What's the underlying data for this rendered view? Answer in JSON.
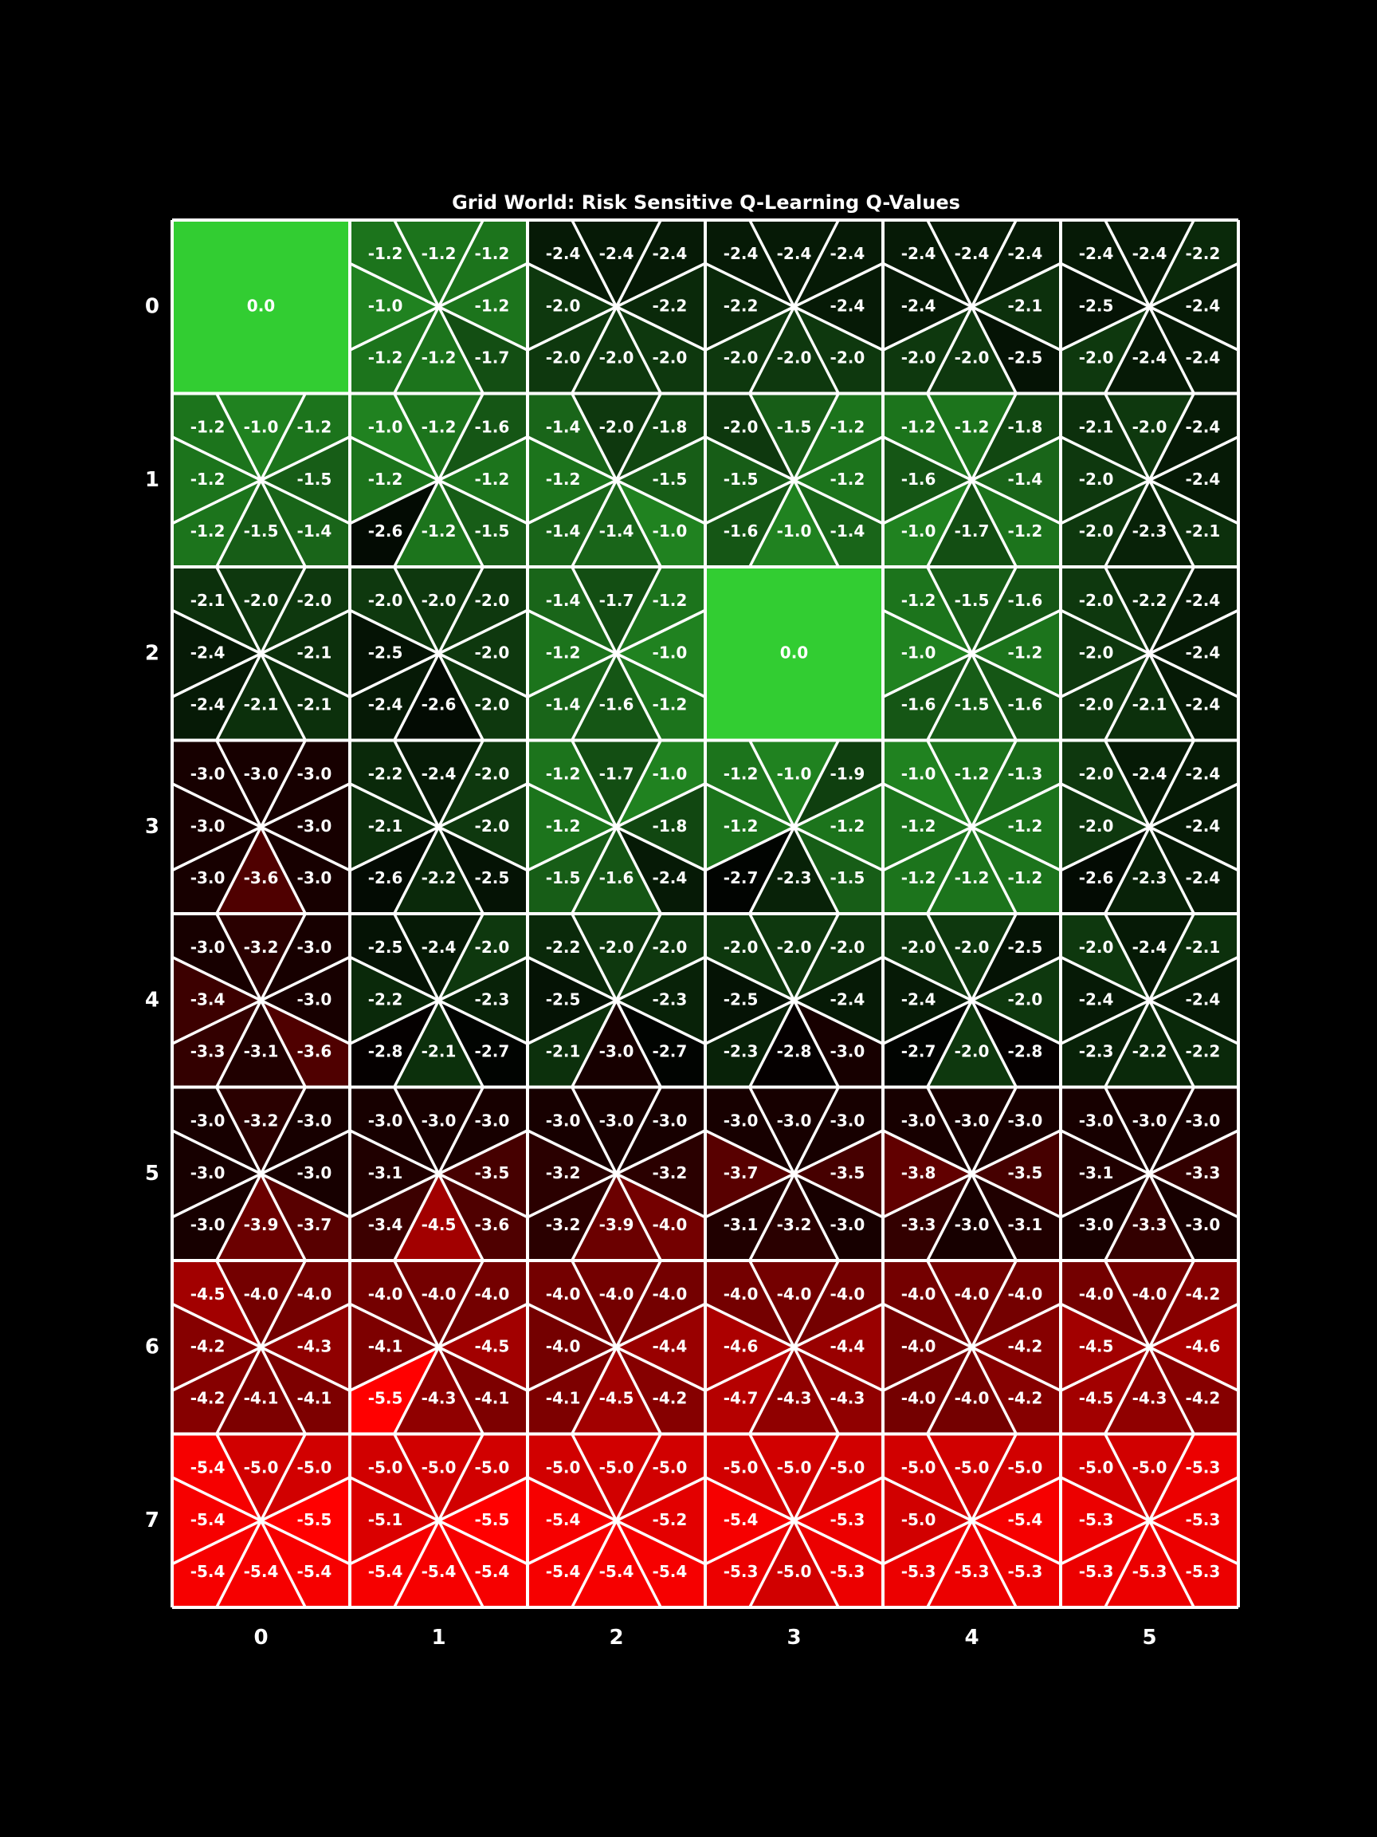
{
  "chart_data": {
    "type": "heatmap",
    "title": "Grid World: Risk Sensitive Q-Learning Q-Values",
    "xlabel": "",
    "ylabel": "",
    "x_ticks": [
      "0",
      "1",
      "2",
      "3",
      "4",
      "5"
    ],
    "y_ticks": [
      "0",
      "1",
      "2",
      "3",
      "4",
      "5",
      "6",
      "7"
    ],
    "rows": 8,
    "cols": 6,
    "action_order": [
      "NW",
      "N",
      "NE",
      "W",
      "E",
      "SW",
      "S",
      "SE"
    ],
    "colormap": {
      "negative_extreme": "#ff0000",
      "zero_mid": "#000000",
      "positive_extreme": "#32cd32"
    },
    "grid_color": "#ffffff",
    "terminal_cells": [
      {
        "row": 0,
        "col": 0,
        "value": "0.0"
      },
      {
        "row": 2,
        "col": 3,
        "value": "0.0"
      }
    ],
    "q_values": [
      [
        null,
        [
          "-1.2",
          "-1.2",
          "-1.2",
          "-1.0",
          "-1.2",
          "-1.2",
          "-1.2",
          "-1.7"
        ],
        [
          "-2.4",
          "-2.4",
          "-2.4",
          "-2.0",
          "-2.2",
          "-2.0",
          "-2.0",
          "-2.0"
        ],
        [
          "-2.4",
          "-2.4",
          "-2.4",
          "-2.2",
          "-2.4",
          "-2.0",
          "-2.0",
          "-2.0"
        ],
        [
          "-2.4",
          "-2.4",
          "-2.4",
          "-2.4",
          "-2.1",
          "-2.0",
          "-2.0",
          "-2.5"
        ],
        [
          "-2.4",
          "-2.4",
          "-2.2",
          "-2.5",
          "-2.4",
          "-2.0",
          "-2.4",
          "-2.4"
        ]
      ],
      [
        [
          "-1.2",
          "-1.0",
          "-1.2",
          "-1.2",
          "-1.5",
          "-1.2",
          "-1.5",
          "-1.4"
        ],
        [
          "-1.0",
          "-1.2",
          "-1.6",
          "-1.2",
          "-1.2",
          "-2.6",
          "-1.2",
          "-1.5"
        ],
        [
          "-1.4",
          "-2.0",
          "-1.8",
          "-1.2",
          "-1.5",
          "-1.4",
          "-1.4",
          "-1.0"
        ],
        [
          "-2.0",
          "-1.5",
          "-1.2",
          "-1.5",
          "-1.2",
          "-1.6",
          "-1.0",
          "-1.4"
        ],
        [
          "-1.2",
          "-1.2",
          "-1.8",
          "-1.6",
          "-1.4",
          "-1.0",
          "-1.7",
          "-1.2"
        ],
        [
          "-2.1",
          "-2.0",
          "-2.4",
          "-2.0",
          "-2.4",
          "-2.0",
          "-2.3",
          "-2.1"
        ]
      ],
      [
        [
          "-2.1",
          "-2.0",
          "-2.0",
          "-2.4",
          "-2.1",
          "-2.4",
          "-2.1",
          "-2.1"
        ],
        [
          "-2.0",
          "-2.0",
          "-2.0",
          "-2.5",
          "-2.0",
          "-2.4",
          "-2.6",
          "-2.0"
        ],
        [
          "-1.4",
          "-1.7",
          "-1.2",
          "-1.2",
          "-1.0",
          "-1.4",
          "-1.6",
          "-1.2"
        ],
        null,
        [
          "-1.2",
          "-1.5",
          "-1.6",
          "-1.0",
          "-1.2",
          "-1.6",
          "-1.5",
          "-1.6"
        ],
        [
          "-2.0",
          "-2.2",
          "-2.4",
          "-2.0",
          "-2.4",
          "-2.0",
          "-2.1",
          "-2.4"
        ]
      ],
      [
        [
          "-3.0",
          "-3.0",
          "-3.0",
          "-3.0",
          "-3.0",
          "-3.0",
          "-3.6",
          "-3.0"
        ],
        [
          "-2.2",
          "-2.4",
          "-2.0",
          "-2.1",
          "-2.0",
          "-2.6",
          "-2.2",
          "-2.5"
        ],
        [
          "-1.2",
          "-1.7",
          "-1.0",
          "-1.2",
          "-1.8",
          "-1.5",
          "-1.6",
          "-2.4"
        ],
        [
          "-1.2",
          "-1.0",
          "-1.9",
          "-1.2",
          "-1.2",
          "-2.7",
          "-2.3",
          "-1.5"
        ],
        [
          "-1.0",
          "-1.2",
          "-1.3",
          "-1.2",
          "-1.2",
          "-1.2",
          "-1.2",
          "-1.2"
        ],
        [
          "-2.0",
          "-2.4",
          "-2.4",
          "-2.0",
          "-2.4",
          "-2.6",
          "-2.3",
          "-2.4"
        ]
      ],
      [
        [
          "-3.0",
          "-3.2",
          "-3.0",
          "-3.4",
          "-3.0",
          "-3.3",
          "-3.1",
          "-3.6"
        ],
        [
          "-2.5",
          "-2.4",
          "-2.0",
          "-2.2",
          "-2.3",
          "-2.8",
          "-2.1",
          "-2.7"
        ],
        [
          "-2.2",
          "-2.0",
          "-2.0",
          "-2.5",
          "-2.3",
          "-2.1",
          "-3.0",
          "-2.7"
        ],
        [
          "-2.0",
          "-2.0",
          "-2.0",
          "-2.5",
          "-2.4",
          "-2.3",
          "-2.8",
          "-3.0"
        ],
        [
          "-2.0",
          "-2.0",
          "-2.5",
          "-2.4",
          "-2.0",
          "-2.7",
          "-2.0",
          "-2.8"
        ],
        [
          "-2.0",
          "-2.4",
          "-2.1",
          "-2.4",
          "-2.4",
          "-2.3",
          "-2.2",
          "-2.2"
        ]
      ],
      [
        [
          "-3.0",
          "-3.2",
          "-3.0",
          "-3.0",
          "-3.0",
          "-3.0",
          "-3.9",
          "-3.7"
        ],
        [
          "-3.0",
          "-3.0",
          "-3.0",
          "-3.1",
          "-3.5",
          "-3.4",
          "-4.5",
          "-3.6"
        ],
        [
          "-3.0",
          "-3.0",
          "-3.0",
          "-3.2",
          "-3.2",
          "-3.2",
          "-3.9",
          "-4.0"
        ],
        [
          "-3.0",
          "-3.0",
          "-3.0",
          "-3.7",
          "-3.5",
          "-3.1",
          "-3.2",
          "-3.0"
        ],
        [
          "-3.0",
          "-3.0",
          "-3.0",
          "-3.8",
          "-3.5",
          "-3.3",
          "-3.0",
          "-3.1"
        ],
        [
          "-3.0",
          "-3.0",
          "-3.0",
          "-3.1",
          "-3.3",
          "-3.0",
          "-3.3",
          "-3.0"
        ]
      ],
      [
        [
          "-4.5",
          "-4.0",
          "-4.0",
          "-4.2",
          "-4.3",
          "-4.2",
          "-4.1",
          "-4.1"
        ],
        [
          "-4.0",
          "-4.0",
          "-4.0",
          "-4.1",
          "-4.5",
          "-5.5",
          "-4.3",
          "-4.1"
        ],
        [
          "-4.0",
          "-4.0",
          "-4.0",
          "-4.0",
          "-4.4",
          "-4.1",
          "-4.5",
          "-4.2"
        ],
        [
          "-4.0",
          "-4.0",
          "-4.0",
          "-4.6",
          "-4.4",
          "-4.7",
          "-4.3",
          "-4.3"
        ],
        [
          "-4.0",
          "-4.0",
          "-4.0",
          "-4.0",
          "-4.2",
          "-4.0",
          "-4.0",
          "-4.2"
        ],
        [
          "-4.0",
          "-4.0",
          "-4.2",
          "-4.5",
          "-4.6",
          "-4.5",
          "-4.3",
          "-4.2"
        ]
      ],
      [
        [
          "-5.4",
          "-5.0",
          "-5.0",
          "-5.4",
          "-5.5",
          "-5.4",
          "-5.4",
          "-5.4"
        ],
        [
          "-5.0",
          "-5.0",
          "-5.0",
          "-5.1",
          "-5.5",
          "-5.4",
          "-5.4",
          "-5.4"
        ],
        [
          "-5.0",
          "-5.0",
          "-5.0",
          "-5.4",
          "-5.2",
          "-5.4",
          "-5.4",
          "-5.4"
        ],
        [
          "-5.0",
          "-5.0",
          "-5.0",
          "-5.4",
          "-5.3",
          "-5.3",
          "-5.0",
          "-5.3"
        ],
        [
          "-5.0",
          "-5.0",
          "-5.0",
          "-5.0",
          "-5.4",
          "-5.3",
          "-5.3",
          "-5.3"
        ],
        [
          "-5.0",
          "-5.0",
          "-5.3",
          "-5.3",
          "-5.3",
          "-5.3",
          "-5.3",
          "-5.3"
        ]
      ]
    ]
  }
}
